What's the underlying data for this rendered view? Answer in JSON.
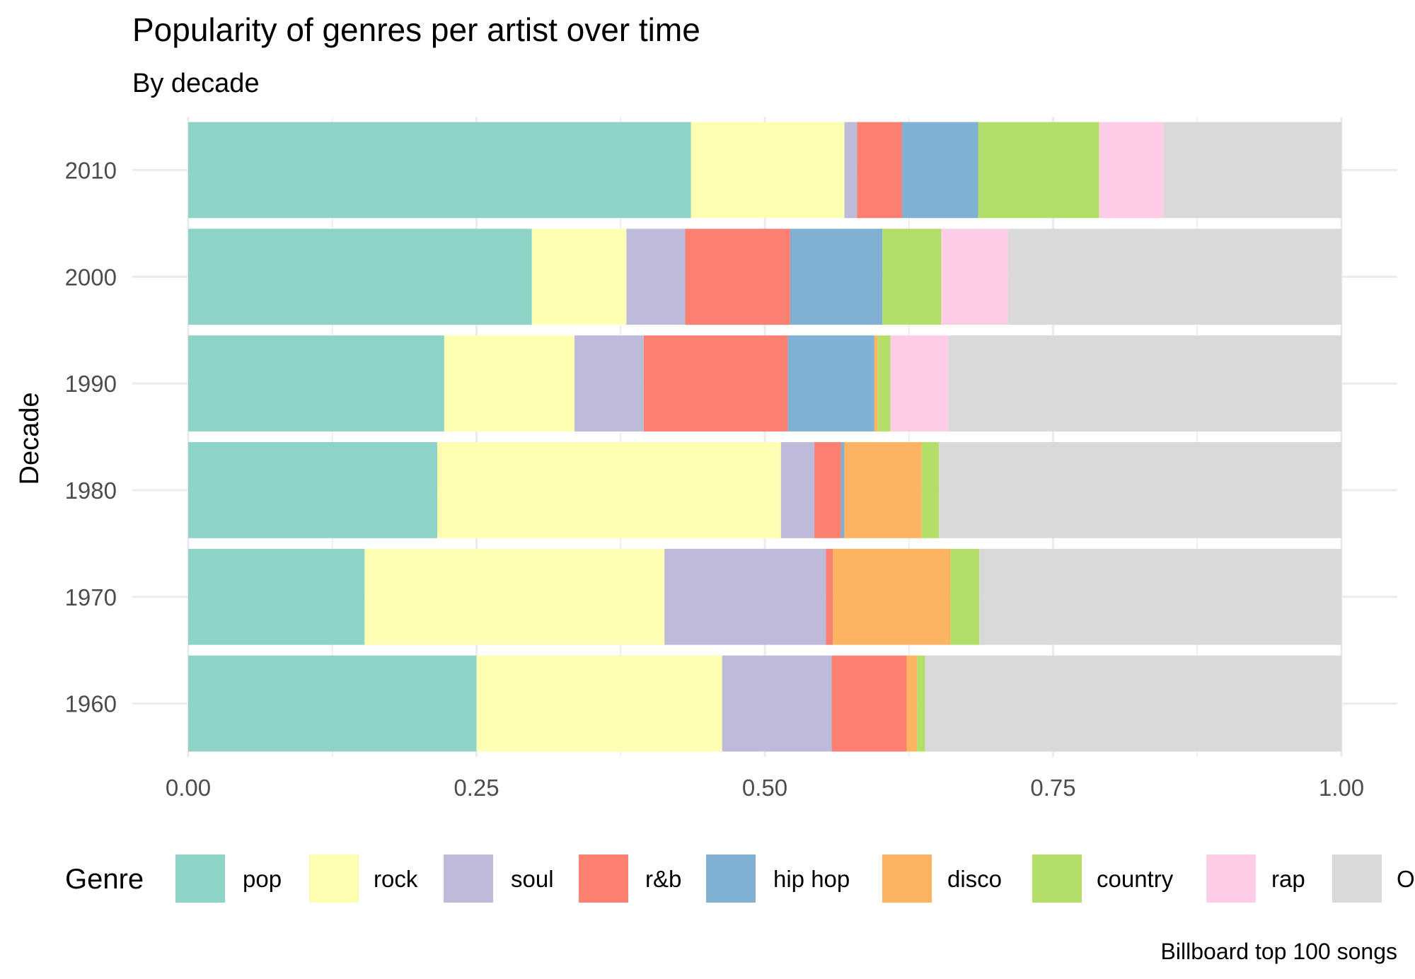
{
  "chart_data": {
    "type": "bar",
    "orientation": "horizontal",
    "stacked": true,
    "title": "Popularity of genres per artist over time",
    "subtitle": "By decade",
    "ylabel": "Decade",
    "xlabel": "",
    "caption": "Billboard top 100 songs",
    "xlim": [
      0,
      1
    ],
    "x_ticks": [
      "0.00",
      "0.25",
      "0.50",
      "0.75",
      "1.00"
    ],
    "grid": true,
    "legend": {
      "title": "Genre",
      "placement": "bottom"
    },
    "categories": [
      "1960",
      "1970",
      "1980",
      "1990",
      "2000",
      "2010"
    ],
    "series": [
      {
        "name": "pop",
        "color": "#8ED3C7",
        "values": [
          0.25,
          0.153,
          0.216,
          0.222,
          0.298,
          0.436
        ]
      },
      {
        "name": "rock",
        "color": "#FFFFB3",
        "values": [
          0.213,
          0.26,
          0.298,
          0.113,
          0.082,
          0.133
        ]
      },
      {
        "name": "soul",
        "color": "#BEBADA",
        "values": [
          0.095,
          0.14,
          0.029,
          0.06,
          0.051,
          0.011
        ]
      },
      {
        "name": "r&b",
        "color": "#FB8072",
        "values": [
          0.065,
          0.006,
          0.023,
          0.125,
          0.091,
          0.039
        ]
      },
      {
        "name": "hip hop",
        "color": "#80B1D3",
        "values": [
          0.0,
          0.0,
          0.003,
          0.075,
          0.08,
          0.066
        ]
      },
      {
        "name": "disco",
        "color": "#FDB462",
        "values": [
          0.009,
          0.102,
          0.067,
          0.003,
          0.0,
          0.0
        ]
      },
      {
        "name": "country",
        "color": "#B3DE69",
        "values": [
          0.007,
          0.025,
          0.015,
          0.011,
          0.051,
          0.105
        ]
      },
      {
        "name": "rap",
        "color": "#FCCDE5",
        "values": [
          0.0,
          0.0,
          0.0,
          0.05,
          0.058,
          0.056
        ]
      },
      {
        "name": "Other",
        "color": "#D9D9D9",
        "values": [
          0.361,
          0.314,
          0.349,
          0.341,
          0.289,
          0.154
        ]
      }
    ]
  }
}
